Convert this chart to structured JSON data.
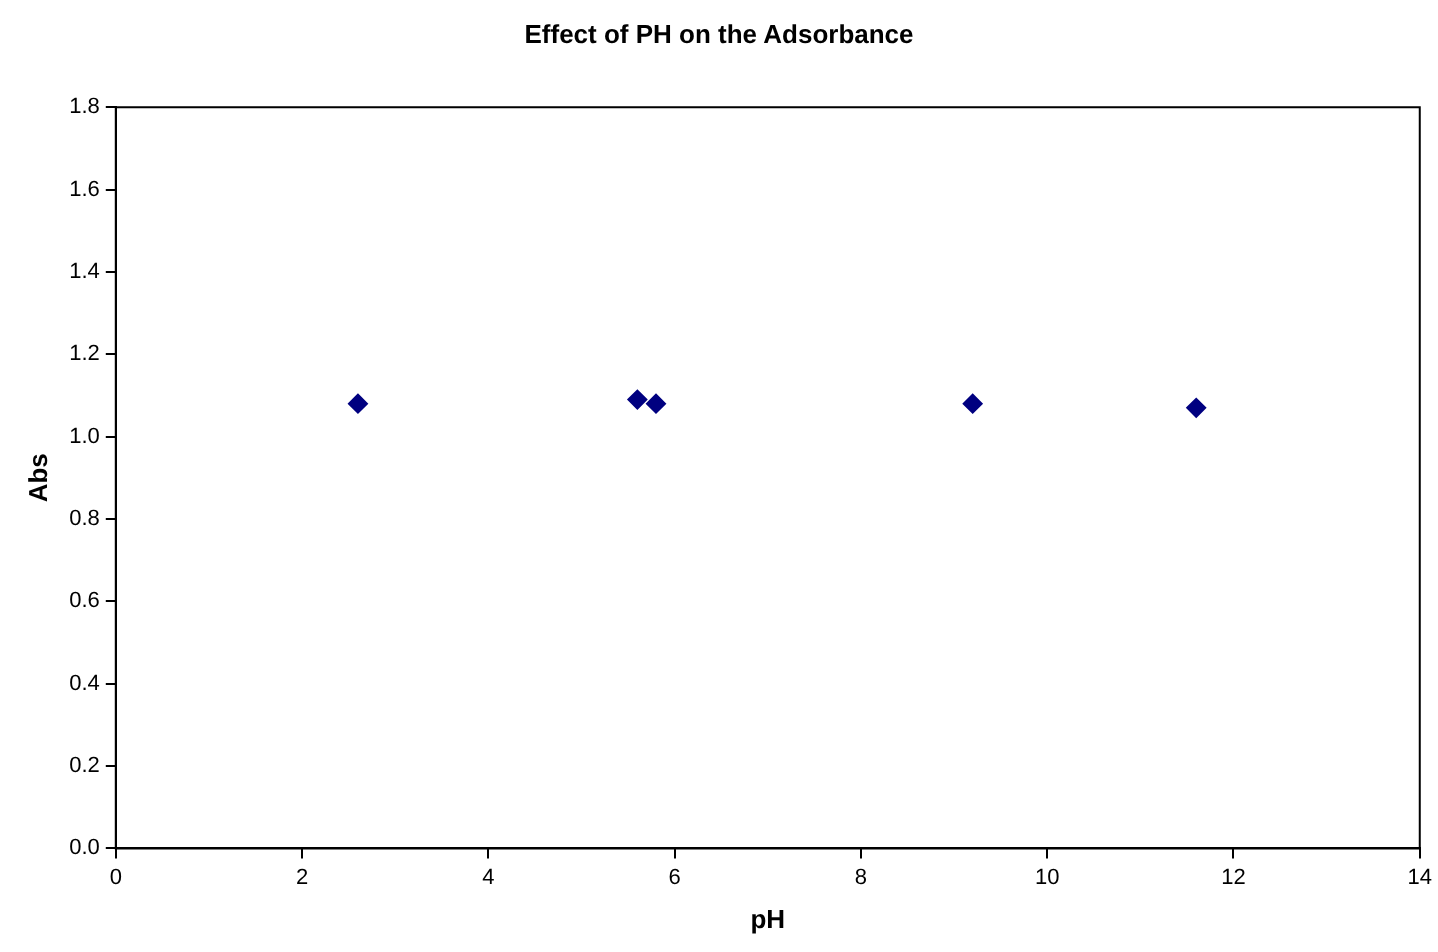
{
  "chart_data": {
    "type": "scatter",
    "title": "Effect of PH on the Adsorbance",
    "xlabel": "pH",
    "ylabel": "Abs",
    "x": [
      2.6,
      5.6,
      5.8,
      9.2,
      11.6
    ],
    "values": [
      1.08,
      1.09,
      1.08,
      1.08,
      1.07
    ],
    "color": "#000080",
    "marker": "diamond",
    "xlim": [
      0,
      14
    ],
    "xticks": [
      0,
      2,
      4,
      6,
      8,
      10,
      12,
      14
    ],
    "ylim": [
      0,
      1.8
    ],
    "yticks": [
      {
        "value": 0,
        "label": "0.0"
      },
      {
        "value": 0.2,
        "label": "0.2"
      },
      {
        "value": 0.4,
        "label": "0.4"
      },
      {
        "value": 0.6,
        "label": "0.6"
      },
      {
        "value": 0.8,
        "label": "0.8"
      },
      {
        "value": 1.0,
        "label": "1.0"
      },
      {
        "value": 1.2,
        "label": "1.2"
      },
      {
        "value": 1.4,
        "label": "1.4"
      },
      {
        "value": 1.6,
        "label": "1.6"
      },
      {
        "value": 1.8,
        "label": "1.8"
      }
    ],
    "grid": false,
    "legend": false
  }
}
